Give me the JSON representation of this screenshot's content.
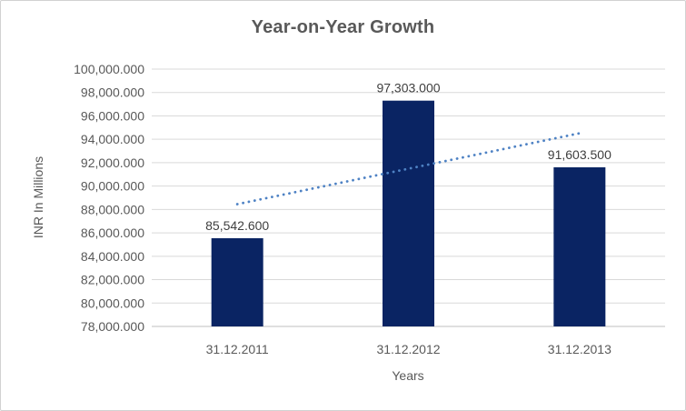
{
  "chart_data": {
    "type": "bar",
    "title": "Year-on-Year Growth",
    "xlabel": "Years",
    "ylabel": "INR In Millions",
    "categories": [
      "31.12.2011",
      "31.12.2012",
      "31.12.2013"
    ],
    "values": [
      85542.6,
      97303.0,
      91603.5
    ],
    "data_labels": [
      "85,542.600",
      "97,303.000",
      "91,603.500"
    ],
    "ylim": [
      78000,
      100000
    ],
    "ytick_step": 2000,
    "ytick_labels": [
      "78,000.000",
      "80,000.000",
      "82,000.000",
      "84,000.000",
      "86,000.000",
      "88,000.000",
      "90,000.000",
      "92,000.000",
      "94,000.000",
      "96,000.000",
      "98,000.000",
      "100,000.000"
    ],
    "grid": true,
    "legend": "none",
    "trendline": {
      "type": "linear",
      "style": "dotted",
      "start_value": 88452.6,
      "end_value": 94513.5
    },
    "colors": {
      "bar": "#0a2463",
      "trendline": "#4e82c4",
      "gridline": "#d9d9d9",
      "axis_line": "#bfbfbf",
      "tick_text": "#595959",
      "data_label_text": "#3f3f3f"
    }
  }
}
